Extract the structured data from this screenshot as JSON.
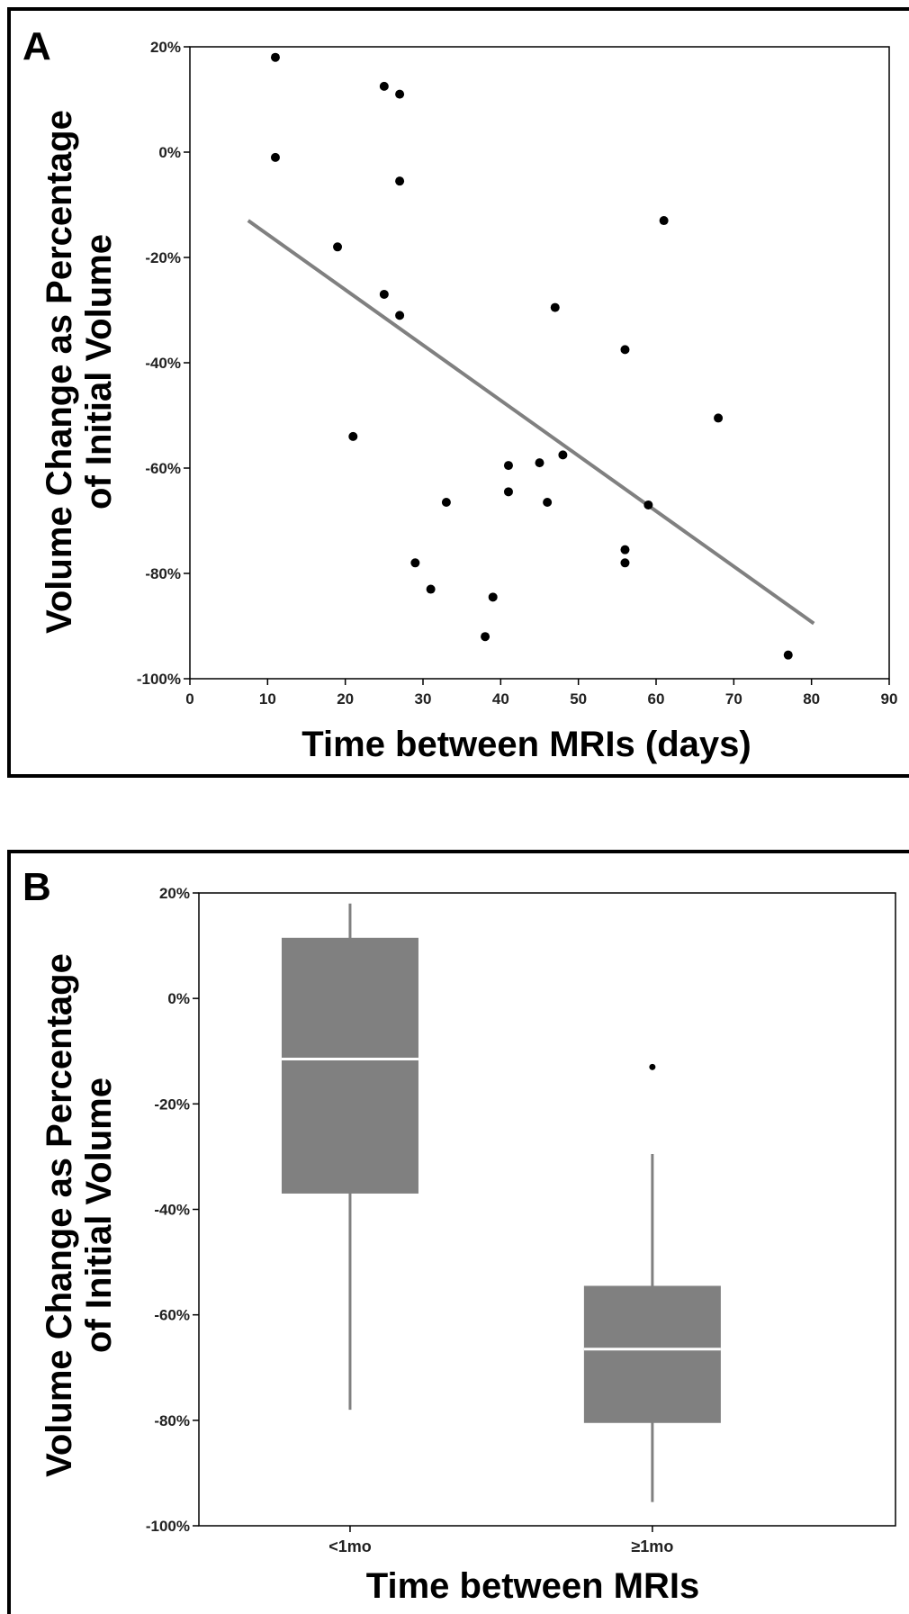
{
  "chart_data": [
    {
      "panel": "A",
      "type": "scatter",
      "xlabel": "Time between MRIs (days)",
      "ylabel_lines": [
        "Volume Change as Percentage",
        "of Initial Volume"
      ],
      "xlim": [
        0,
        90
      ],
      "ylim": [
        -100,
        20
      ],
      "xticks": [
        0,
        10,
        20,
        30,
        40,
        50,
        60,
        70,
        80,
        90
      ],
      "yticks": [
        20,
        0,
        -20,
        -40,
        -60,
        -80,
        -100
      ],
      "ytick_suffix": "%",
      "points": [
        {
          "x": 11,
          "y": 18
        },
        {
          "x": 11,
          "y": -1
        },
        {
          "x": 19,
          "y": -18
        },
        {
          "x": 21,
          "y": -54
        },
        {
          "x": 25,
          "y": 12.5
        },
        {
          "x": 25,
          "y": -27
        },
        {
          "x": 27,
          "y": 11
        },
        {
          "x": 27,
          "y": -5.5
        },
        {
          "x": 27,
          "y": -31
        },
        {
          "x": 29,
          "y": -78
        },
        {
          "x": 31,
          "y": -83
        },
        {
          "x": 33,
          "y": -66.5
        },
        {
          "x": 38,
          "y": -92
        },
        {
          "x": 39,
          "y": -84.5
        },
        {
          "x": 41,
          "y": -59.5
        },
        {
          "x": 41,
          "y": -64.5
        },
        {
          "x": 45,
          "y": -59
        },
        {
          "x": 46,
          "y": -66.5
        },
        {
          "x": 47,
          "y": -29.5
        },
        {
          "x": 48,
          "y": -57.5
        },
        {
          "x": 56,
          "y": -37.5
        },
        {
          "x": 56,
          "y": -75.5
        },
        {
          "x": 56,
          "y": -78
        },
        {
          "x": 59,
          "y": -67
        },
        {
          "x": 61,
          "y": -13
        },
        {
          "x": 68,
          "y": -50.5
        },
        {
          "x": 77,
          "y": -95.5
        }
      ],
      "regression_line": {
        "x": [
          7.5,
          80.3
        ],
        "y": [
          -13,
          -89.5
        ]
      },
      "colors": {
        "points": "#000000",
        "line": "#808080"
      }
    },
    {
      "panel": "B",
      "type": "boxplot",
      "xlabel": "Time between MRIs",
      "ylabel_lines": [
        "Volume Change as Percentage",
        "of Initial Volume"
      ],
      "ylim": [
        -100,
        20
      ],
      "yticks": [
        20,
        0,
        -20,
        -40,
        -60,
        -80,
        -100
      ],
      "ytick_suffix": "%",
      "categories": [
        "<1mo",
        "≥1mo"
      ],
      "boxes": [
        {
          "whisker_low": -78,
          "q1": -37,
          "median": -11.5,
          "q3": 11.5,
          "whisker_high": 18,
          "outliers": []
        },
        {
          "whisker_low": -95.5,
          "q1": -80.5,
          "median": -66.5,
          "q3": -54.5,
          "whisker_high": -29.5,
          "outliers": [
            -13
          ]
        }
      ],
      "colors": {
        "box": "#808080",
        "median": "#ffffff",
        "whisker": "#808080"
      }
    }
  ]
}
